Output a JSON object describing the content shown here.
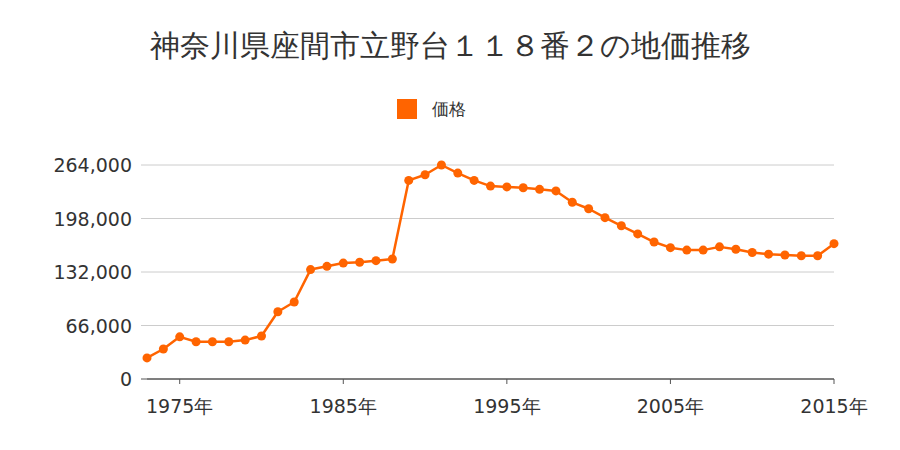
{
  "chart_data": {
    "type": "line",
    "title": "神奈川県座間市立野台１１８番２の地価推移",
    "x": [
      1973,
      1974,
      1975,
      1976,
      1977,
      1978,
      1979,
      1980,
      1981,
      1982,
      1983,
      1984,
      1985,
      1986,
      1987,
      1988,
      1989,
      1990,
      1991,
      1992,
      1993,
      1994,
      1995,
      1996,
      1997,
      1998,
      1999,
      2000,
      2001,
      2002,
      2003,
      2004,
      2005,
      2006,
      2007,
      2008,
      2009,
      2010,
      2011,
      2012,
      2013,
      2014,
      2015
    ],
    "series": [
      {
        "name": "価格",
        "color": "#ff6400",
        "marker": "circle",
        "values": [
          26000,
          37000,
          52000,
          46000,
          46000,
          46000,
          48000,
          53000,
          83000,
          95000,
          135000,
          139000,
          143000,
          144000,
          146000,
          148000,
          245000,
          252000,
          264000,
          254000,
          245000,
          238000,
          237000,
          236000,
          234000,
          232000,
          218000,
          210000,
          199000,
          189000,
          179000,
          169000,
          162000,
          159000,
          159000,
          163000,
          160000,
          156000,
          154000,
          153000,
          152000,
          152000,
          167000
        ]
      }
    ],
    "xlim": [
      1973,
      2015
    ],
    "xticks": [
      {
        "value": 1975,
        "label": "1975年"
      },
      {
        "value": 1985,
        "label": "1985年"
      },
      {
        "value": 1995,
        "label": "1995年"
      },
      {
        "value": 2005,
        "label": "2005年"
      },
      {
        "value": 2015,
        "label": "2015年"
      }
    ],
    "ylim": [
      0,
      264000
    ],
    "yticks": [
      0,
      {
        "value": 66000,
        "label": "66,000"
      },
      {
        "value": 132000,
        "label": "132,000"
      },
      {
        "value": 198000,
        "label": "198,000"
      },
      {
        "value": 264000,
        "label": "264,000"
      }
    ],
    "grid": true,
    "legend": "top"
  }
}
